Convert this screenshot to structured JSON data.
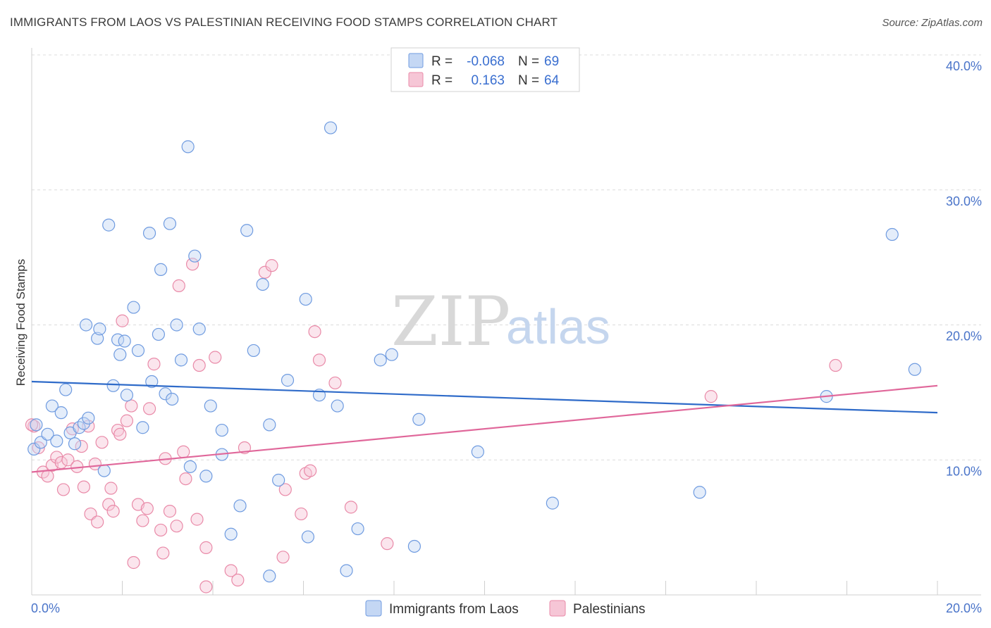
{
  "title": "IMMIGRANTS FROM LAOS VS PALESTINIAN RECEIVING FOOD STAMPS CORRELATION CHART",
  "source": "Source: ZipAtlas.com",
  "watermark": {
    "zip": "ZIP",
    "atlas": "atlas"
  },
  "legend_top": [
    {
      "r_label": "R =",
      "r_value": "-0.068",
      "n_label": "N =",
      "n_value": "69",
      "color": "#6f9be0"
    },
    {
      "r_label": "R =",
      "r_value": "0.163",
      "n_label": "N =",
      "n_value": "64",
      "color": "#e98aa8"
    }
  ],
  "chart_data": {
    "type": "scatter",
    "ylabel": "Receiving Food Stamps",
    "xlim": [
      0,
      20
    ],
    "ylim": [
      0,
      40
    ],
    "x_ticks": [
      "0.0%",
      "20.0%"
    ],
    "y_ticks": [
      "10.0%",
      "20.0%",
      "30.0%",
      "40.0%"
    ],
    "colors": {
      "laos": "#6f9be0",
      "pal": "#e98aa8",
      "laos_line": "#2f6bc9",
      "pal_line": "#e0679a"
    },
    "series": [
      {
        "name": "Immigrants from Laos",
        "trend": [
          [
            0,
            15.8
          ],
          [
            20,
            13.5
          ]
        ],
        "points": [
          [
            0.05,
            10.8
          ],
          [
            0.2,
            11.3
          ],
          [
            0.35,
            11.9
          ],
          [
            0.45,
            14.0
          ],
          [
            0.55,
            11.4
          ],
          [
            0.65,
            13.5
          ],
          [
            0.75,
            15.2
          ],
          [
            0.85,
            12.0
          ],
          [
            0.95,
            11.2
          ],
          [
            1.05,
            12.4
          ],
          [
            1.15,
            12.7
          ],
          [
            1.25,
            13.1
          ],
          [
            1.2,
            20.0
          ],
          [
            1.45,
            19.0
          ],
          [
            1.5,
            19.7
          ],
          [
            1.6,
            9.2
          ],
          [
            1.7,
            27.4
          ],
          [
            1.8,
            15.5
          ],
          [
            1.9,
            18.9
          ],
          [
            1.95,
            17.8
          ],
          [
            2.05,
            18.8
          ],
          [
            2.1,
            14.8
          ],
          [
            2.25,
            21.3
          ],
          [
            2.35,
            18.1
          ],
          [
            2.45,
            12.4
          ],
          [
            2.6,
            26.8
          ],
          [
            2.65,
            15.8
          ],
          [
            2.8,
            19.3
          ],
          [
            2.85,
            24.1
          ],
          [
            2.95,
            14.9
          ],
          [
            3.05,
            27.5
          ],
          [
            3.1,
            14.5
          ],
          [
            3.2,
            20.0
          ],
          [
            3.3,
            17.4
          ],
          [
            3.45,
            33.2
          ],
          [
            3.5,
            9.5
          ],
          [
            3.6,
            25.1
          ],
          [
            3.7,
            19.7
          ],
          [
            3.85,
            8.8
          ],
          [
            3.95,
            14.0
          ],
          [
            4.2,
            12.2
          ],
          [
            4.2,
            10.4
          ],
          [
            4.4,
            4.5
          ],
          [
            4.6,
            6.6
          ],
          [
            4.75,
            27.0
          ],
          [
            4.9,
            18.1
          ],
          [
            5.1,
            23.0
          ],
          [
            5.25,
            1.4
          ],
          [
            5.25,
            12.6
          ],
          [
            5.45,
            8.5
          ],
          [
            5.65,
            15.9
          ],
          [
            6.05,
            21.9
          ],
          [
            6.1,
            4.3
          ],
          [
            6.35,
            14.8
          ],
          [
            6.6,
            34.6
          ],
          [
            6.75,
            14.0
          ],
          [
            6.95,
            1.8
          ],
          [
            7.2,
            4.9
          ],
          [
            7.7,
            17.4
          ],
          [
            7.95,
            17.8
          ],
          [
            8.45,
            3.6
          ],
          [
            8.55,
            13.0
          ],
          [
            9.85,
            10.6
          ],
          [
            11.5,
            6.8
          ],
          [
            14.75,
            7.6
          ],
          [
            17.55,
            14.7
          ],
          [
            19.0,
            26.7
          ],
          [
            19.5,
            16.7
          ],
          [
            0.1,
            12.6
          ]
        ]
      },
      {
        "name": "Palestinians",
        "trend": [
          [
            0,
            9.1
          ],
          [
            20,
            15.5
          ]
        ],
        "points": [
          [
            0.05,
            12.5
          ],
          [
            0.15,
            10.9
          ],
          [
            0.25,
            9.1
          ],
          [
            0.35,
            8.8
          ],
          [
            0.45,
            9.6
          ],
          [
            0.55,
            10.2
          ],
          [
            0.65,
            9.8
          ],
          [
            0.7,
            7.8
          ],
          [
            0.8,
            10.0
          ],
          [
            0.9,
            12.3
          ],
          [
            1.0,
            9.5
          ],
          [
            1.1,
            11.0
          ],
          [
            1.15,
            8.0
          ],
          [
            1.25,
            12.5
          ],
          [
            1.3,
            6.0
          ],
          [
            1.4,
            9.7
          ],
          [
            1.45,
            5.4
          ],
          [
            1.55,
            11.3
          ],
          [
            1.7,
            6.7
          ],
          [
            1.75,
            7.9
          ],
          [
            1.8,
            6.2
          ],
          [
            1.9,
            12.2
          ],
          [
            1.95,
            11.9
          ],
          [
            2.0,
            20.3
          ],
          [
            2.1,
            12.9
          ],
          [
            2.2,
            14.0
          ],
          [
            2.25,
            2.4
          ],
          [
            2.35,
            6.7
          ],
          [
            2.45,
            5.5
          ],
          [
            2.55,
            6.4
          ],
          [
            2.6,
            13.8
          ],
          [
            2.7,
            17.1
          ],
          [
            2.85,
            4.8
          ],
          [
            2.9,
            3.1
          ],
          [
            2.95,
            10.1
          ],
          [
            3.05,
            6.2
          ],
          [
            3.2,
            5.1
          ],
          [
            3.25,
            22.9
          ],
          [
            3.35,
            10.6
          ],
          [
            3.4,
            8.6
          ],
          [
            3.55,
            24.5
          ],
          [
            3.65,
            5.6
          ],
          [
            3.7,
            17.0
          ],
          [
            3.85,
            3.5
          ],
          [
            3.85,
            0.6
          ],
          [
            4.05,
            17.6
          ],
          [
            4.4,
            1.8
          ],
          [
            4.55,
            1.1
          ],
          [
            4.7,
            10.9
          ],
          [
            5.15,
            23.9
          ],
          [
            5.3,
            24.4
          ],
          [
            5.55,
            2.8
          ],
          [
            5.6,
            7.8
          ],
          [
            5.95,
            6.0
          ],
          [
            6.05,
            9.0
          ],
          [
            6.15,
            9.2
          ],
          [
            6.25,
            19.5
          ],
          [
            6.35,
            17.4
          ],
          [
            6.7,
            15.7
          ],
          [
            7.05,
            6.5
          ],
          [
            7.85,
            3.8
          ],
          [
            15.0,
            14.7
          ],
          [
            17.75,
            17.0
          ],
          [
            0.0,
            12.6
          ]
        ]
      }
    ]
  },
  "bottom_legend": [
    {
      "label": "Immigrants from Laos",
      "color": "#6f9be0"
    },
    {
      "label": "Palestinians",
      "color": "#e98aa8"
    }
  ]
}
